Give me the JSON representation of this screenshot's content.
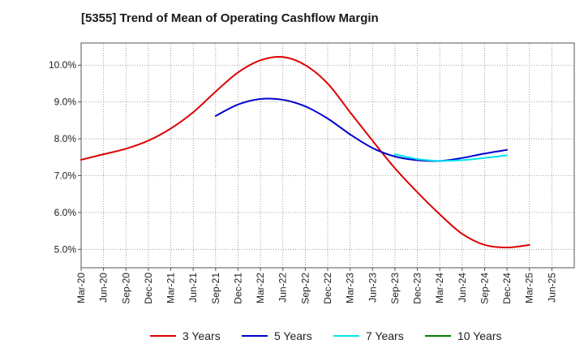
{
  "chart_data": {
    "type": "line",
    "title": "[5355]  Trend of Mean of Operating Cashflow Margin",
    "xlabel": "",
    "ylabel": "",
    "ylim": [
      4.5,
      10.6
    ],
    "y_ticks": [
      5.0,
      6.0,
      7.0,
      8.0,
      9.0,
      10.0
    ],
    "y_tick_labels": [
      "5.0%",
      "6.0%",
      "7.0%",
      "8.0%",
      "9.0%",
      "10.0%"
    ],
    "x_tick_labels": [
      "Mar-20",
      "Jun-20",
      "Sep-20",
      "Dec-20",
      "Mar-21",
      "Jun-21",
      "Sep-21",
      "Dec-21",
      "Mar-22",
      "Jun-22",
      "Sep-22",
      "Dec-22",
      "Mar-23",
      "Jun-23",
      "Sep-23",
      "Dec-23",
      "Mar-24",
      "Jun-24",
      "Sep-24",
      "Dec-24",
      "Mar-25",
      "Jun-25"
    ],
    "grid": true,
    "legend_position": "bottom",
    "series": [
      {
        "name": "3 Years",
        "color": "#dd0000",
        "values": [
          7.43,
          7.58,
          7.73,
          7.95,
          8.28,
          8.72,
          9.28,
          9.8,
          10.13,
          10.22,
          10.0,
          9.5,
          8.72,
          7.95,
          7.2,
          6.55,
          5.95,
          5.42,
          5.12,
          5.05,
          5.12,
          null
        ]
      },
      {
        "name": "5 Years",
        "color": "#0000cc",
        "values": [
          null,
          null,
          null,
          null,
          null,
          null,
          8.62,
          8.93,
          9.08,
          9.06,
          8.88,
          8.55,
          8.12,
          7.75,
          7.52,
          7.42,
          7.4,
          7.48,
          7.6,
          7.7,
          null,
          null
        ]
      },
      {
        "name": "7 Years",
        "color": "#00e5ee",
        "values": [
          null,
          null,
          null,
          null,
          null,
          null,
          null,
          null,
          null,
          null,
          null,
          null,
          null,
          null,
          7.58,
          7.45,
          7.4,
          7.42,
          7.48,
          7.55,
          null,
          null
        ]
      },
      {
        "name": "10 Years",
        "color": "#008000",
        "values": [
          null,
          null,
          null,
          null,
          null,
          null,
          null,
          null,
          null,
          null,
          null,
          null,
          null,
          null,
          null,
          null,
          null,
          null,
          null,
          null,
          null,
          null
        ]
      }
    ]
  }
}
